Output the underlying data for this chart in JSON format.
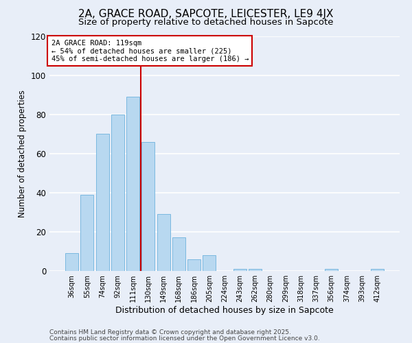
{
  "title": "2A, GRACE ROAD, SAPCOTE, LEICESTER, LE9 4JX",
  "subtitle": "Size of property relative to detached houses in Sapcote",
  "xlabel": "Distribution of detached houses by size in Sapcote",
  "ylabel": "Number of detached properties",
  "bar_labels": [
    "36sqm",
    "55sqm",
    "74sqm",
    "92sqm",
    "111sqm",
    "130sqm",
    "149sqm",
    "168sqm",
    "186sqm",
    "205sqm",
    "224sqm",
    "243sqm",
    "262sqm",
    "280sqm",
    "299sqm",
    "318sqm",
    "337sqm",
    "356sqm",
    "374sqm",
    "393sqm",
    "412sqm"
  ],
  "bar_values": [
    9,
    39,
    70,
    80,
    89,
    66,
    29,
    17,
    6,
    8,
    0,
    1,
    1,
    0,
    0,
    0,
    0,
    1,
    0,
    0,
    1
  ],
  "bar_color": "#b8d8f0",
  "bar_edge_color": "#7ab8e0",
  "ylim": [
    0,
    120
  ],
  "yticks": [
    0,
    20,
    40,
    60,
    80,
    100,
    120
  ],
  "vline_color": "#cc0000",
  "annotation_title": "2A GRACE ROAD: 119sqm",
  "annotation_line1": "← 54% of detached houses are smaller (225)",
  "annotation_line2": "45% of semi-detached houses are larger (186) →",
  "annotation_box_color": "#ffffff",
  "annotation_box_edge": "#cc0000",
  "footer_line1": "Contains HM Land Registry data © Crown copyright and database right 2025.",
  "footer_line2": "Contains public sector information licensed under the Open Government Licence v3.0.",
  "bg_color": "#e8eef8",
  "grid_color": "#ffffff",
  "title_fontsize": 11,
  "subtitle_fontsize": 9.5,
  "bar_width": 0.85
}
